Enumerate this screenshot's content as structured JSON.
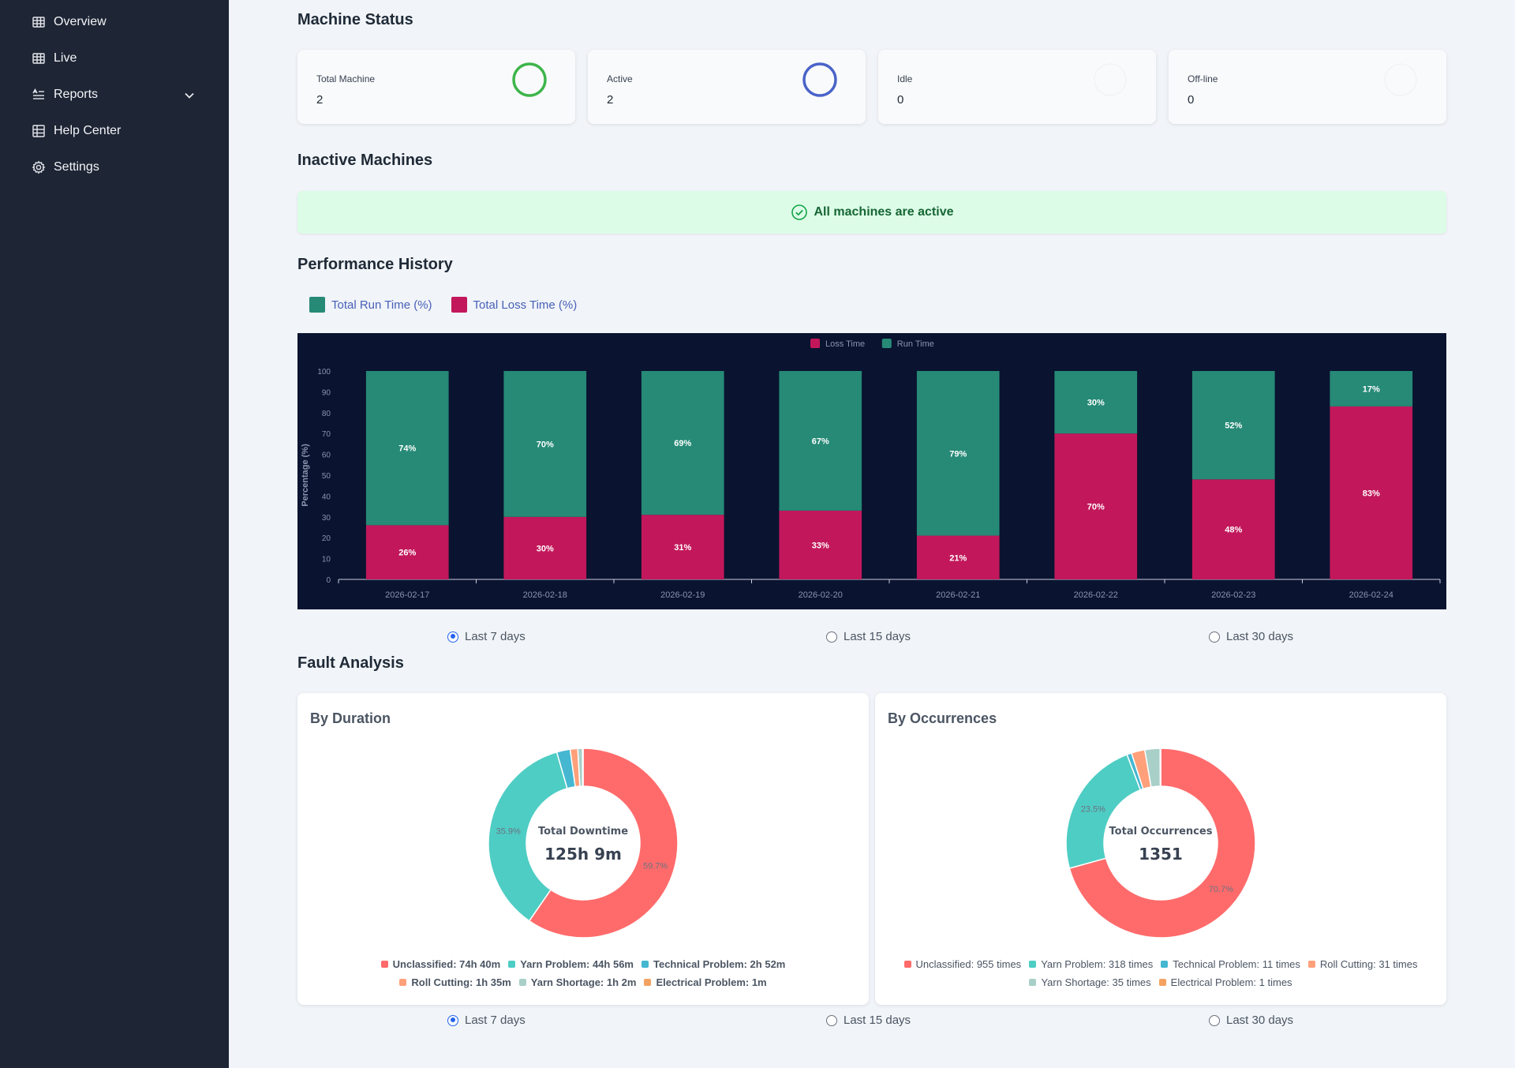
{
  "nav": {
    "items": [
      {
        "label": "Overview",
        "icon": "table-icon"
      },
      {
        "label": "Live",
        "icon": "table-icon"
      },
      {
        "label": "Reports",
        "icon": "list-sort-icon"
      },
      {
        "label": "Help Center",
        "icon": "grid-icon"
      },
      {
        "label": "Settings",
        "icon": "gear-icon"
      }
    ]
  },
  "machine_status": {
    "title": "Machine Status",
    "cards": [
      {
        "label": "Total Machine",
        "value": "2",
        "ring_color": "#3db54a"
      },
      {
        "label": "Active",
        "value": "2",
        "ring_color": "#4a63c9"
      },
      {
        "label": "Idle",
        "value": "0",
        "ring_color": "#e5e7eb"
      },
      {
        "label": "Off-line",
        "value": "0",
        "ring_color": "#e5e7eb"
      }
    ]
  },
  "inactive": {
    "title": "Inactive Machines",
    "banner": "All machines are active"
  },
  "performance": {
    "title": "Performance History",
    "legend": [
      "Total Run Time (%)",
      "Total Loss Time (%)"
    ],
    "range_options": [
      "Last 7 days",
      "Last 15 days",
      "Last 30 days"
    ],
    "selected_range": "Last 7 days"
  },
  "chart_data": {
    "type": "bar",
    "stacked": true,
    "categories": [
      "2026-02-17",
      "2026-02-18",
      "2026-02-19",
      "2026-02-20",
      "2026-02-21",
      "2026-02-22",
      "2026-02-23",
      "2026-02-24"
    ],
    "series": [
      {
        "name": "Loss Time",
        "color": "#c2185b",
        "values": [
          26,
          30,
          31,
          33,
          21,
          70,
          48,
          83
        ]
      },
      {
        "name": "Run Time",
        "color": "#268a76",
        "values": [
          74,
          70,
          69,
          67,
          79,
          30,
          52,
          17
        ]
      }
    ],
    "ylabel": "Percentage (%)",
    "ylim": [
      0,
      100
    ],
    "yticks": [
      0,
      10,
      20,
      30,
      40,
      50,
      60,
      70,
      80,
      90,
      100
    ],
    "legend_position": "top-center",
    "grid": false
  },
  "fault": {
    "title": "Fault Analysis",
    "range_options": [
      "Last 7 days",
      "Last 15 days",
      "Last 30 days"
    ],
    "selected_range": "Last 7 days",
    "duration": {
      "title": "By Duration",
      "center_sub": "Total Downtime",
      "center_main": "125h 9m",
      "slices": [
        {
          "name": "Unclassified",
          "value": 59.7,
          "color": "#ff6b6b",
          "legend": "Unclassified: 74h 40m",
          "pct_label": "59.7%"
        },
        {
          "name": "Yarn Problem",
          "value": 35.9,
          "color": "#4ecdc4",
          "legend": "Yarn Problem: 44h 56m",
          "pct_label": "35.9%"
        },
        {
          "name": "Technical Problem",
          "value": 2.3,
          "color": "#45b7d1",
          "legend": "Technical Problem: 2h 52m",
          "pct_label": ""
        },
        {
          "name": "Roll Cutting",
          "value": 1.3,
          "color": "#ffa07a",
          "legend": "Roll Cutting: 1h 35m",
          "pct_label": ""
        },
        {
          "name": "Yarn Shortage",
          "value": 0.8,
          "color": "#a8d0c8",
          "legend": "Yarn Shortage: 1h 2m",
          "pct_label": ""
        },
        {
          "name": "Electrical Problem",
          "value": 0.1,
          "color": "#f4a261",
          "legend": "Electrical Problem: 1m",
          "pct_label": ""
        }
      ]
    },
    "occurrences": {
      "title": "By Occurrences",
      "center_sub": "Total Occurrences",
      "center_main": "1351",
      "slices": [
        {
          "name": "Unclassified",
          "value": 70.7,
          "color": "#ff6b6b",
          "legend": "Unclassified: 955 times",
          "pct_label": "70.7%"
        },
        {
          "name": "Yarn Problem",
          "value": 23.5,
          "color": "#4ecdc4",
          "legend": "Yarn Problem: 318 times",
          "pct_label": "23.5%"
        },
        {
          "name": "Technical Problem",
          "value": 0.8,
          "color": "#45b7d1",
          "legend": "Technical Problem: 11 times",
          "pct_label": ""
        },
        {
          "name": "Roll Cutting",
          "value": 2.3,
          "color": "#ffa07a",
          "legend": "Roll Cutting: 31 times",
          "pct_label": ""
        },
        {
          "name": "Yarn Shortage",
          "value": 2.6,
          "color": "#a8d0c8",
          "legend": "Yarn Shortage: 35 times",
          "pct_label": ""
        },
        {
          "name": "Electrical Problem",
          "value": 0.1,
          "color": "#f4a261",
          "legend": "Electrical Problem: 1 times",
          "pct_label": ""
        }
      ]
    }
  }
}
